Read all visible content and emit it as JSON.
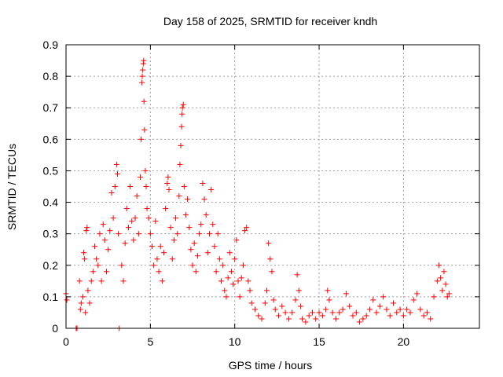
{
  "chart_data": {
    "type": "scatter",
    "title": "Day 158 of 2025, SRMTID for receiver kndh",
    "xlabel": "GPS time / hours",
    "ylabel": "SRMTID / TECUs",
    "xlim": [
      0,
      24.5
    ],
    "ylim": [
      0,
      0.9
    ],
    "xticks": [
      0,
      5,
      10,
      15,
      20
    ],
    "yticks": [
      0,
      0.1,
      0.2,
      0.3,
      0.4,
      0.5,
      0.6,
      0.7,
      0.8,
      0.9
    ],
    "xtick_labels": [
      "0",
      "5",
      "10",
      "15",
      "20"
    ],
    "ytick_labels": [
      "0",
      "0.1",
      "0.2",
      "0.3",
      "0.4",
      "0.5",
      "0.6",
      "0.7",
      "0.8",
      "0.9"
    ],
    "grid": true,
    "marker": "+",
    "color": "#ff0000",
    "series": [
      {
        "name": "SRMTID",
        "points": [
          [
            0.0,
            0.11
          ],
          [
            0.05,
            0.09
          ],
          [
            0.6,
            0.0
          ],
          [
            0.65,
            0.0
          ],
          [
            0.8,
            0.15
          ],
          [
            0.85,
            0.06
          ],
          [
            0.9,
            0.08
          ],
          [
            1.0,
            0.1
          ],
          [
            1.05,
            0.24
          ],
          [
            1.1,
            0.22
          ],
          [
            1.15,
            0.05
          ],
          [
            1.2,
            0.31
          ],
          [
            1.25,
            0.32
          ],
          [
            1.3,
            0.12
          ],
          [
            1.4,
            0.08
          ],
          [
            1.5,
            0.15
          ],
          [
            1.6,
            0.18
          ],
          [
            1.7,
            0.26
          ],
          [
            1.8,
            0.22
          ],
          [
            1.9,
            0.2
          ],
          [
            2.0,
            0.3
          ],
          [
            2.1,
            0.15
          ],
          [
            2.2,
            0.33
          ],
          [
            2.3,
            0.28
          ],
          [
            2.4,
            0.18
          ],
          [
            2.5,
            0.25
          ],
          [
            2.6,
            0.31
          ],
          [
            2.7,
            0.43
          ],
          [
            2.8,
            0.35
          ],
          [
            2.9,
            0.45
          ],
          [
            3.0,
            0.52
          ],
          [
            3.05,
            0.49
          ],
          [
            3.1,
            0.3
          ],
          [
            3.15,
            0.0
          ],
          [
            3.3,
            0.2
          ],
          [
            3.4,
            0.15
          ],
          [
            3.5,
            0.27
          ],
          [
            3.6,
            0.38
          ],
          [
            3.7,
            0.32
          ],
          [
            3.8,
            0.45
          ],
          [
            3.9,
            0.34
          ],
          [
            4.0,
            0.28
          ],
          [
            4.1,
            0.35
          ],
          [
            4.2,
            0.42
          ],
          [
            4.3,
            0.3
          ],
          [
            4.4,
            0.48
          ],
          [
            4.45,
            0.6
          ],
          [
            4.5,
            0.78
          ],
          [
            4.52,
            0.8
          ],
          [
            4.55,
            0.82
          ],
          [
            4.58,
            0.84
          ],
          [
            4.6,
            0.85
          ],
          [
            4.62,
            0.72
          ],
          [
            4.65,
            0.63
          ],
          [
            4.7,
            0.5
          ],
          [
            4.75,
            0.45
          ],
          [
            4.8,
            0.38
          ],
          [
            4.9,
            0.35
          ],
          [
            5.0,
            0.3
          ],
          [
            5.1,
            0.26
          ],
          [
            5.2,
            0.2
          ],
          [
            5.3,
            0.34
          ],
          [
            5.4,
            0.22
          ],
          [
            5.5,
            0.18
          ],
          [
            5.6,
            0.26
          ],
          [
            5.7,
            0.15
          ],
          [
            5.8,
            0.24
          ],
          [
            5.9,
            0.38
          ],
          [
            6.0,
            0.46
          ],
          [
            6.05,
            0.48
          ],
          [
            6.1,
            0.44
          ],
          [
            6.2,
            0.32
          ],
          [
            6.3,
            0.22
          ],
          [
            6.4,
            0.28
          ],
          [
            6.5,
            0.35
          ],
          [
            6.6,
            0.3
          ],
          [
            6.7,
            0.42
          ],
          [
            6.75,
            0.52
          ],
          [
            6.8,
            0.58
          ],
          [
            6.85,
            0.64
          ],
          [
            6.88,
            0.68
          ],
          [
            6.9,
            0.7
          ],
          [
            6.95,
            0.71
          ],
          [
            7.0,
            0.45
          ],
          [
            7.1,
            0.36
          ],
          [
            7.2,
            0.41
          ],
          [
            7.3,
            0.32
          ],
          [
            7.4,
            0.25
          ],
          [
            7.5,
            0.2
          ],
          [
            7.6,
            0.27
          ],
          [
            7.7,
            0.18
          ],
          [
            7.8,
            0.23
          ],
          [
            7.9,
            0.3
          ],
          [
            8.0,
            0.33
          ],
          [
            8.1,
            0.46
          ],
          [
            8.2,
            0.41
          ],
          [
            8.3,
            0.36
          ],
          [
            8.4,
            0.24
          ],
          [
            8.5,
            0.3
          ],
          [
            8.6,
            0.44
          ],
          [
            8.7,
            0.33
          ],
          [
            8.8,
            0.26
          ],
          [
            8.9,
            0.18
          ],
          [
            9.0,
            0.3
          ],
          [
            9.1,
            0.22
          ],
          [
            9.2,
            0.15
          ],
          [
            9.3,
            0.2
          ],
          [
            9.4,
            0.12
          ],
          [
            9.5,
            0.1
          ],
          [
            9.6,
            0.16
          ],
          [
            9.7,
            0.24
          ],
          [
            9.8,
            0.18
          ],
          [
            9.9,
            0.14
          ],
          [
            10.0,
            0.22
          ],
          [
            10.1,
            0.28
          ],
          [
            10.2,
            0.15
          ],
          [
            10.3,
            0.1
          ],
          [
            10.4,
            0.16
          ],
          [
            10.5,
            0.2
          ],
          [
            10.6,
            0.31
          ],
          [
            10.7,
            0.32
          ],
          [
            10.8,
            0.15
          ],
          [
            10.9,
            0.12
          ],
          [
            11.0,
            0.08
          ],
          [
            11.2,
            0.06
          ],
          [
            11.4,
            0.04
          ],
          [
            11.6,
            0.03
          ],
          [
            11.8,
            0.08
          ],
          [
            11.9,
            0.12
          ],
          [
            12.0,
            0.27
          ],
          [
            12.1,
            0.22
          ],
          [
            12.2,
            0.18
          ],
          [
            12.3,
            0.09
          ],
          [
            12.4,
            0.06
          ],
          [
            12.6,
            0.04
          ],
          [
            12.8,
            0.07
          ],
          [
            13.0,
            0.05
          ],
          [
            13.2,
            0.03
          ],
          [
            13.4,
            0.05
          ],
          [
            13.6,
            0.09
          ],
          [
            13.7,
            0.17
          ],
          [
            13.8,
            0.12
          ],
          [
            13.9,
            0.07
          ],
          [
            14.0,
            0.03
          ],
          [
            14.2,
            0.02
          ],
          [
            14.4,
            0.04
          ],
          [
            14.6,
            0.05
          ],
          [
            14.8,
            0.03
          ],
          [
            15.0,
            0.05
          ],
          [
            15.2,
            0.04
          ],
          [
            15.4,
            0.06
          ],
          [
            15.5,
            0.12
          ],
          [
            15.6,
            0.09
          ],
          [
            15.8,
            0.05
          ],
          [
            16.0,
            0.03
          ],
          [
            16.2,
            0.05
          ],
          [
            16.4,
            0.06
          ],
          [
            16.6,
            0.11
          ],
          [
            16.8,
            0.07
          ],
          [
            17.0,
            0.04
          ],
          [
            17.2,
            0.05
          ],
          [
            17.4,
            0.02
          ],
          [
            17.6,
            0.03
          ],
          [
            17.8,
            0.04
          ],
          [
            18.0,
            0.06
          ],
          [
            18.2,
            0.09
          ],
          [
            18.4,
            0.05
          ],
          [
            18.6,
            0.07
          ],
          [
            18.8,
            0.1
          ],
          [
            19.0,
            0.06
          ],
          [
            19.2,
            0.04
          ],
          [
            19.4,
            0.08
          ],
          [
            19.6,
            0.05
          ],
          [
            19.8,
            0.06
          ],
          [
            20.0,
            0.04
          ],
          [
            20.2,
            0.06
          ],
          [
            20.4,
            0.05
          ],
          [
            20.6,
            0.09
          ],
          [
            20.8,
            0.11
          ],
          [
            21.0,
            0.06
          ],
          [
            21.2,
            0.04
          ],
          [
            21.4,
            0.05
          ],
          [
            21.6,
            0.03
          ],
          [
            21.8,
            0.1
          ],
          [
            22.0,
            0.15
          ],
          [
            22.1,
            0.2
          ],
          [
            22.2,
            0.16
          ],
          [
            22.3,
            0.12
          ],
          [
            22.4,
            0.18
          ],
          [
            22.5,
            0.14
          ],
          [
            22.6,
            0.1
          ],
          [
            22.7,
            0.11
          ]
        ]
      }
    ]
  }
}
